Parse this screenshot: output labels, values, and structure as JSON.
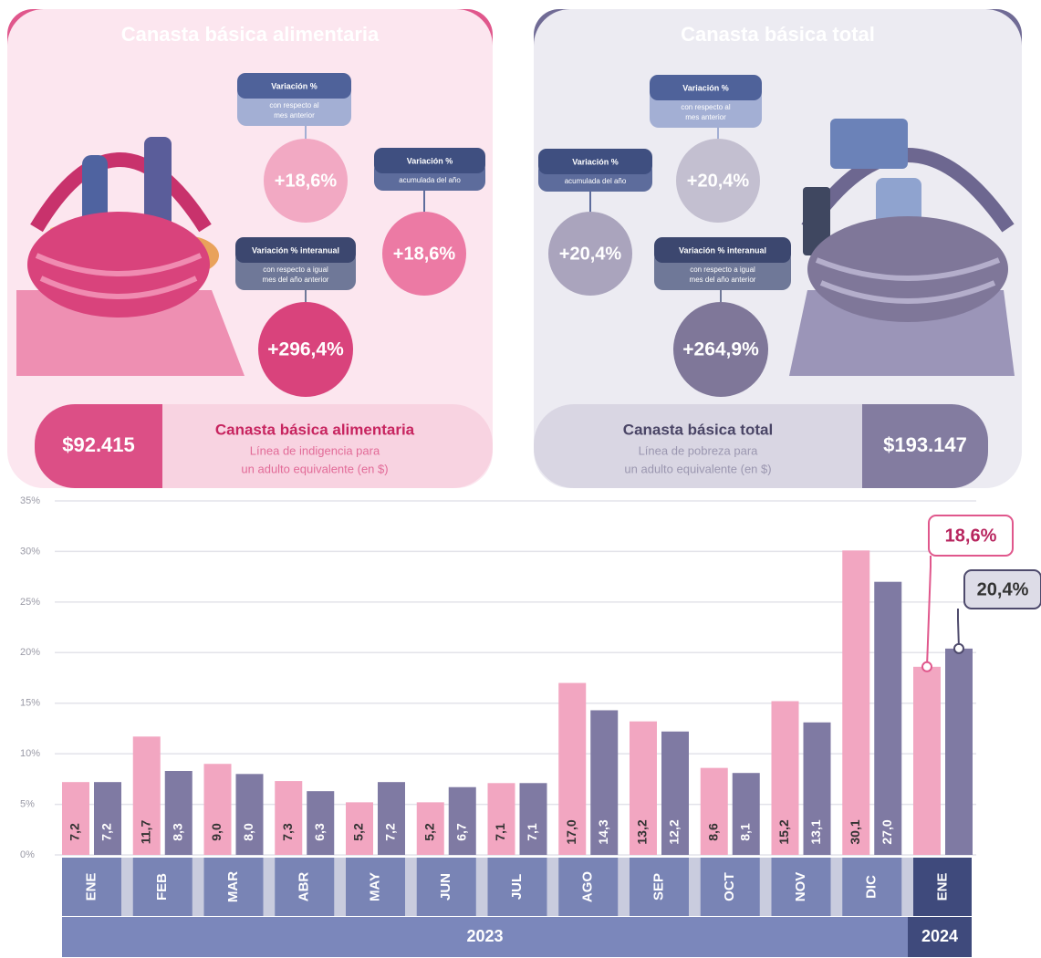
{
  "panels": [
    {
      "boxes": [
        {
          "title": "Variación %",
          "subtitle": [
            "con respecto al",
            "mes anterior"
          ],
          "value": "+18,6%"
        },
        {
          "title": "Variación %",
          "subtitle": [
            "acumulada del año"
          ],
          "value": "+18,6%"
        },
        {
          "title": "Variación % interanual",
          "subtitle": [
            "con respecto a igual",
            "mes del año anterior"
          ],
          "value": "+296,4%"
        }
      ],
      "price": "$92.415",
      "caption": [
        "Línea de indigencia para",
        "un adulto equivalente (en $)"
      ]
    },
    {
      "boxes": [
        {
          "title": "Variación %",
          "subtitle": [
            "con respecto al",
            "mes anterior"
          ],
          "value": "+20,4%"
        },
        {
          "title": "Variación %",
          "subtitle": [
            "acumulada del año"
          ],
          "value": "+20,4%"
        },
        {
          "title": "Variación % interanual",
          "subtitle": [
            "con respecto a igual",
            "mes del año anterior"
          ],
          "value": "+264,9%"
        }
      ],
      "price": "$193.147",
      "caption": [
        "Línea de pobreza para",
        "un adulto equivalente (en $)"
      ]
    }
  ],
  "chart_data": {
    "type": "bar",
    "groups": [
      {
        "label": "2023",
        "categories": [
          "ENE",
          "FEB",
          "MAR",
          "ABR",
          "MAY",
          "JUN",
          "JUL",
          "AGO",
          "SEP",
          "OCT",
          "NOV",
          "DIC"
        ]
      },
      {
        "label": "2024",
        "categories": [
          "ENE"
        ]
      }
    ],
    "series": [
      {
        "name": "Canasta básica alimentaria",
        "color": "#f2a6c1",
        "values": [
          7.2,
          11.7,
          9.0,
          7.3,
          5.2,
          5.2,
          7.1,
          17.0,
          13.2,
          8.6,
          15.2,
          30.1,
          18.6
        ],
        "value_labels": [
          "7,2",
          "11,7",
          "9,0",
          "7,3",
          "5,2",
          "5,2",
          "7,1",
          "17,0",
          "13,2",
          "8,6",
          "15,2",
          "30,1",
          "18,6%"
        ]
      },
      {
        "name": "Canasta básica total",
        "color": "#7f7aa3",
        "values": [
          7.2,
          8.3,
          8.0,
          6.3,
          7.2,
          6.7,
          7.1,
          14.3,
          12.2,
          8.1,
          13.1,
          27.0,
          20.4
        ],
        "value_labels": [
          "7,2",
          "8,3",
          "8,0",
          "6,3",
          "7,2",
          "6,7",
          "7,1",
          "14,3",
          "12,2",
          "8,1",
          "13,1",
          "27,0",
          "20,4%"
        ]
      }
    ],
    "ylim": [
      0,
      35
    ],
    "yticks": [
      {
        "value": 0,
        "label": "0%"
      },
      {
        "value": 5,
        "label": "5%"
      },
      {
        "value": 10,
        "label": "10%"
      },
      {
        "value": 15,
        "label": "15%"
      },
      {
        "value": 20,
        "label": "20%"
      },
      {
        "value": 25,
        "label": "25%"
      },
      {
        "value": 30,
        "label": "30%"
      },
      {
        "value": 35,
        "label": "35%"
      }
    ],
    "grid": true
  }
}
